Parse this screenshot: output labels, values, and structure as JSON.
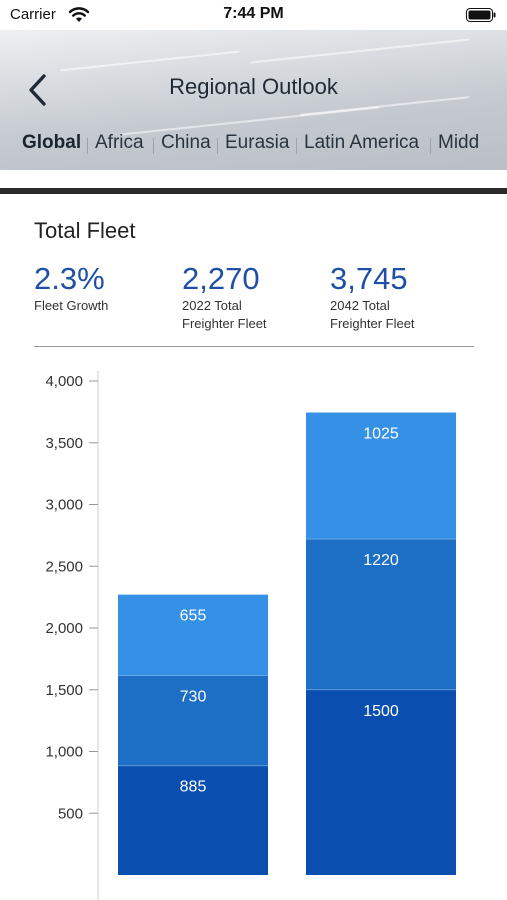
{
  "status_bar": {
    "carrier": "Carrier",
    "time": "7:44 PM"
  },
  "header": {
    "title": "Regional Outlook",
    "tabs": [
      {
        "label": "Global",
        "active": true
      },
      {
        "label": "Africa",
        "active": false
      },
      {
        "label": "China",
        "active": false
      },
      {
        "label": "Eurasia",
        "active": false
      },
      {
        "label": "Latin America",
        "active": false
      },
      {
        "label": "Midd",
        "active": false
      }
    ]
  },
  "fleet": {
    "title": "Total Fleet",
    "stats": [
      {
        "value": "2.3%",
        "label_line1": "Fleet Growth",
        "label_line2": ""
      },
      {
        "value": "2,270",
        "label_line1": "2022 Total",
        "label_line2": "Freighter Fleet"
      },
      {
        "value": "3,745",
        "label_line1": "2042 Total",
        "label_line2": "Freighter Fleet"
      }
    ]
  },
  "colors": {
    "segment_bottom": "#0a4fb0",
    "segment_middle": "#1c6fc4",
    "segment_top": "#3591e6",
    "value_text": "#1f4fa6"
  },
  "chart_data": {
    "type": "bar",
    "stacked": true,
    "categories": [
      "",
      ""
    ],
    "series": [
      {
        "values": [
          885,
          1500
        ]
      },
      {
        "values": [
          730,
          1220
        ]
      },
      {
        "values": [
          655,
          1025
        ]
      }
    ],
    "ylim": [
      0,
      4000
    ],
    "y_ticks": [
      "500",
      "1,000",
      "1,500",
      "2,000",
      "2,500",
      "3,000",
      "3,500",
      "4,000"
    ],
    "data_labels": [
      [
        "885",
        "730",
        "655"
      ],
      [
        "1500",
        "1220",
        "1025"
      ]
    ]
  }
}
